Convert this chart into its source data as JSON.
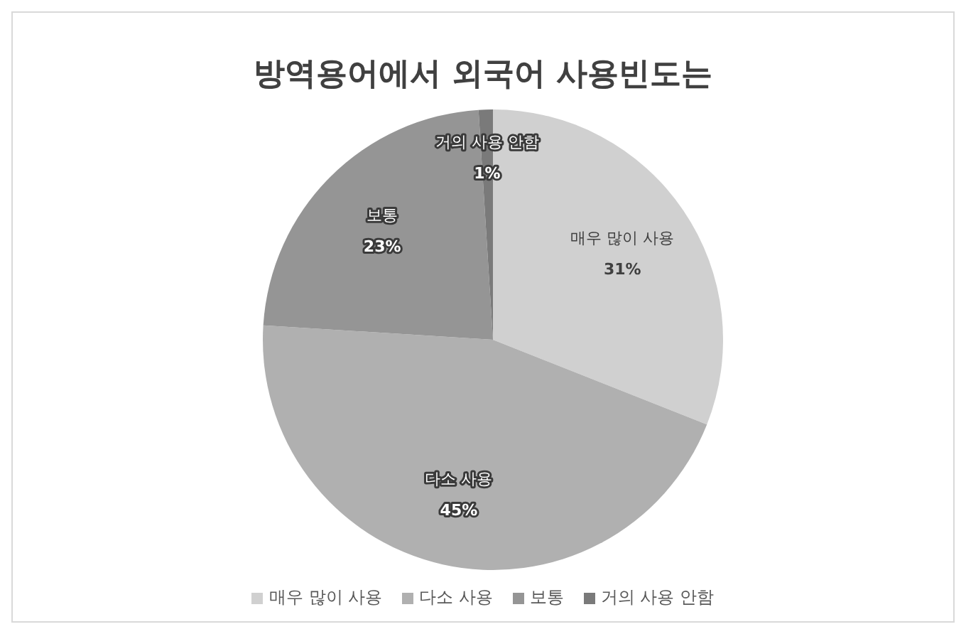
{
  "chart_data": {
    "type": "pie",
    "title": "방역용어에서 외국어 사용빈도는",
    "categories": [
      "매우 많이 사용",
      "다소 사용",
      "보통",
      "거의 사용 안함"
    ],
    "values": [
      31,
      45,
      23,
      1
    ],
    "colors": [
      "#d0d0d0",
      "#b0b0b0",
      "#959595",
      "#7a7a7a"
    ],
    "value_labels": [
      "31%",
      "45%",
      "23%",
      "1%"
    ],
    "legend": "bottom"
  }
}
